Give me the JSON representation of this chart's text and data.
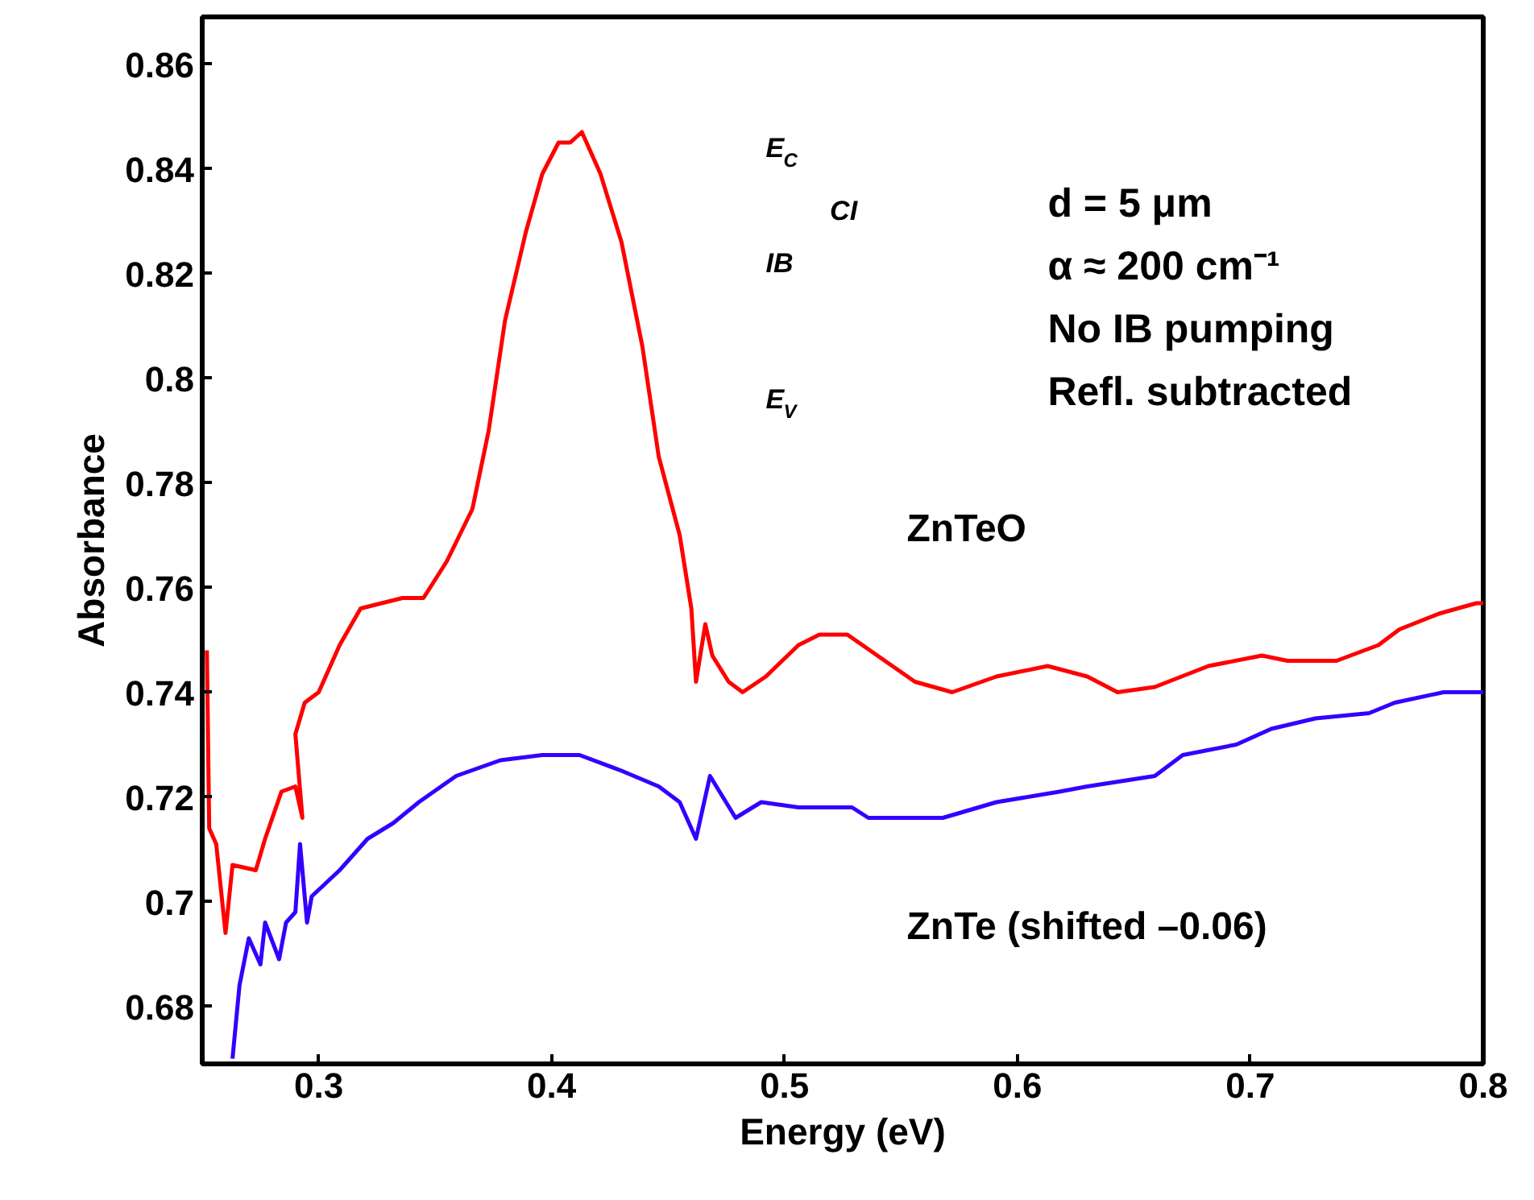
{
  "chart_data": {
    "type": "line",
    "xlabel": "Energy (eV)",
    "ylabel": "Absorbance",
    "xlim": [
      0.25,
      0.8
    ],
    "ylim": [
      0.669,
      0.869
    ],
    "xticks": [
      0.3,
      0.4,
      0.5,
      0.6,
      0.7,
      0.8
    ],
    "yticks": [
      0.68,
      0.7,
      0.72,
      0.74,
      0.76,
      0.78,
      0.8,
      0.82,
      0.84,
      0.86
    ],
    "grid": false,
    "legend": false,
    "marker": "none",
    "line_style": "solid",
    "series": [
      {
        "name": "ZnTeO",
        "color": "#ff0000",
        "x": [
          0.252,
          0.253,
          0.256,
          0.26,
          0.263,
          0.273,
          0.277,
          0.284,
          0.29,
          0.293,
          0.29,
          0.294,
          0.3,
          0.309,
          0.318,
          0.336,
          0.345,
          0.355,
          0.366,
          0.373,
          0.38,
          0.389,
          0.396,
          0.403,
          0.408,
          0.413,
          0.421,
          0.43,
          0.439,
          0.446,
          0.455,
          0.46,
          0.462,
          0.466,
          0.469,
          0.476,
          0.482,
          0.492,
          0.506,
          0.515,
          0.527,
          0.556,
          0.572,
          0.591,
          0.613,
          0.63,
          0.643,
          0.659,
          0.682,
          0.705,
          0.716,
          0.737,
          0.755,
          0.764,
          0.781,
          0.797,
          0.8
        ],
        "values": [
          0.748,
          0.714,
          0.711,
          0.694,
          0.707,
          0.706,
          0.712,
          0.721,
          0.722,
          0.716,
          0.732,
          0.738,
          0.74,
          0.749,
          0.756,
          0.758,
          0.758,
          0.765,
          0.775,
          0.79,
          0.811,
          0.828,
          0.839,
          0.845,
          0.845,
          0.847,
          0.839,
          0.826,
          0.806,
          0.785,
          0.77,
          0.756,
          0.742,
          0.753,
          0.747,
          0.742,
          0.74,
          0.743,
          0.749,
          0.751,
          0.751,
          0.742,
          0.74,
          0.743,
          0.745,
          0.743,
          0.74,
          0.741,
          0.745,
          0.747,
          0.746,
          0.746,
          0.749,
          0.752,
          0.755,
          0.757,
          0.757
        ]
      },
      {
        "name": "ZnTe (shifted –0.06)",
        "color": "#3300ff",
        "x": [
          0.263,
          0.266,
          0.27,
          0.275,
          0.277,
          0.283,
          0.286,
          0.29,
          0.292,
          0.295,
          0.297,
          0.309,
          0.321,
          0.332,
          0.343,
          0.359,
          0.378,
          0.396,
          0.412,
          0.43,
          0.446,
          0.455,
          0.462,
          0.468,
          0.479,
          0.49,
          0.506,
          0.529,
          0.536,
          0.568,
          0.591,
          0.618,
          0.63,
          0.659,
          0.671,
          0.694,
          0.709,
          0.728,
          0.751,
          0.762,
          0.783,
          0.8
        ],
        "values": [
          0.67,
          0.684,
          0.693,
          0.688,
          0.696,
          0.689,
          0.696,
          0.698,
          0.711,
          0.696,
          0.701,
          0.706,
          0.712,
          0.715,
          0.719,
          0.724,
          0.727,
          0.728,
          0.728,
          0.725,
          0.722,
          0.719,
          0.712,
          0.724,
          0.716,
          0.719,
          0.718,
          0.718,
          0.716,
          0.716,
          0.719,
          0.721,
          0.722,
          0.724,
          0.728,
          0.73,
          0.733,
          0.735,
          0.736,
          0.738,
          0.74,
          0.74
        ]
      }
    ],
    "annotations": [
      "d = 5 μm",
      "α ≈ 200 cm⁻¹",
      "No IB pumping",
      "Refl. subtracted",
      "E$_{C}$",
      "CI",
      "IB",
      "E$_{V}$"
    ]
  }
}
